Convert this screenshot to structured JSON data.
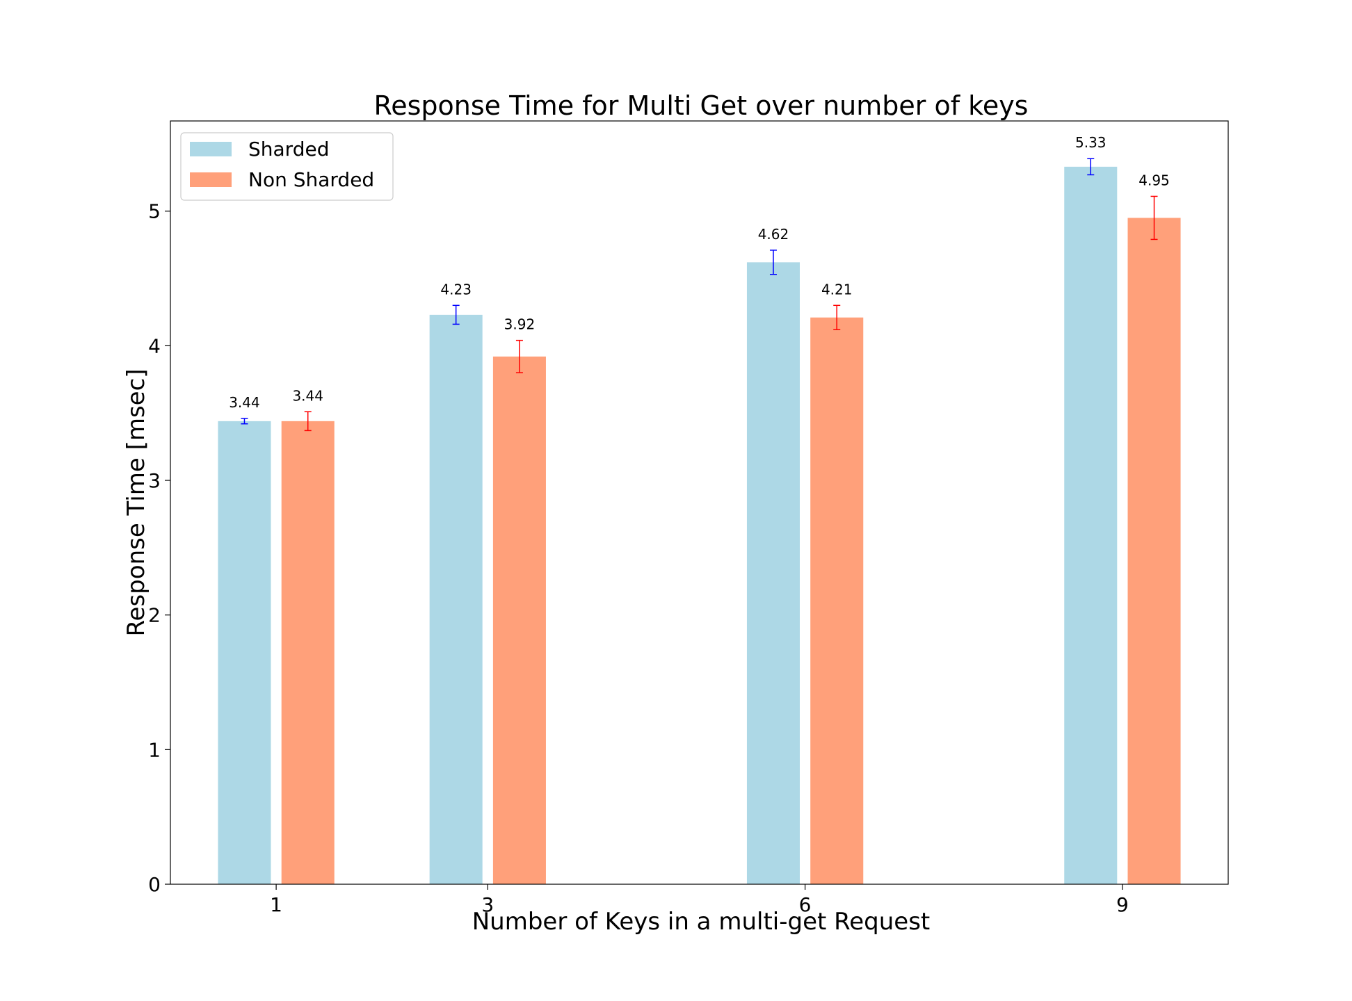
{
  "chart_data": {
    "type": "bar",
    "title": "Response Time for Multi Get over number of keys",
    "xlabel": "Number of Keys in a multi-get Request",
    "ylabel": "Response Time [msec]",
    "x": [
      1,
      3,
      6,
      9
    ],
    "x_tick_labels": [
      "1",
      "3",
      "6",
      "9"
    ],
    "xlim": [
      0,
      10
    ],
    "ylim": [
      0,
      5.67
    ],
    "y_ticks": [
      0,
      1,
      2,
      3,
      4,
      5
    ],
    "y_tick_labels": [
      "0",
      "1",
      "2",
      "3",
      "4",
      "5"
    ],
    "grid": false,
    "legend_position": "top-left",
    "series": [
      {
        "name": "Sharded",
        "color": "#add8e6",
        "error_color": "#0000ff",
        "values": [
          3.44,
          4.23,
          4.62,
          5.33
        ],
        "value_labels": [
          "3.44",
          "4.23",
          "4.62",
          "5.33"
        ],
        "errors": [
          0.02,
          0.07,
          0.09,
          0.06
        ]
      },
      {
        "name": "Non Sharded",
        "color": "#ffa07a",
        "error_color": "#ff0000",
        "values": [
          3.44,
          3.92,
          4.21,
          4.95
        ],
        "value_labels": [
          "3.44",
          "3.92",
          "4.21",
          "4.95"
        ],
        "errors": [
          0.07,
          0.12,
          0.09,
          0.16
        ]
      }
    ]
  }
}
